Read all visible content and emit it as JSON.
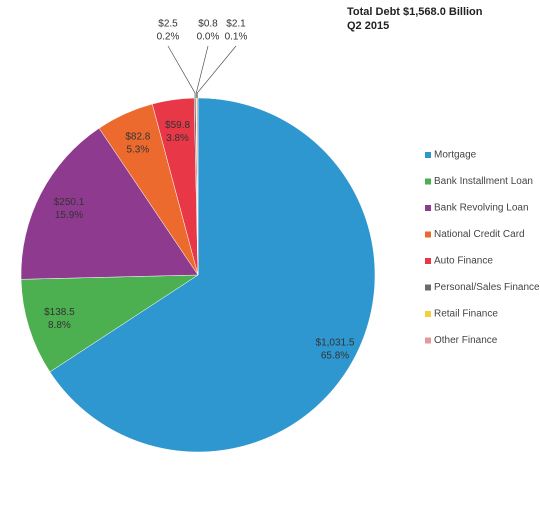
{
  "chart_data": {
    "type": "pie",
    "title": "Total Debt  $1,568.0 Billion",
    "subtitle": "Q2 2015",
    "categories": [
      "Mortgage",
      "Bank Installment Loan",
      "Bank Revolving Loan",
      "National Credit Card",
      "Auto Finance",
      "Personal/Sales Finance",
      "Retail Finance",
      "Other Finance"
    ],
    "values": [
      1031.5,
      138.5,
      250.1,
      82.8,
      59.8,
      2.5,
      0.8,
      2.1
    ],
    "value_labels": [
      "$1,031.5",
      "$138.5",
      "$250.1",
      "$82.8",
      "$59.8",
      "$2.5",
      "$0.8",
      "$2.1"
    ],
    "percent_labels": [
      "65.8%",
      "8.8%",
      "15.9%",
      "5.3%",
      "3.8%",
      "0.2%",
      "0.0%",
      "0.1%"
    ],
    "colors": [
      "#2e97cf",
      "#4caf50",
      "#8e3a8f",
      "#ec6a2e",
      "#e83848",
      "#6b6b6b",
      "#f2d23c",
      "#e49a9a"
    ],
    "legend": "right"
  }
}
